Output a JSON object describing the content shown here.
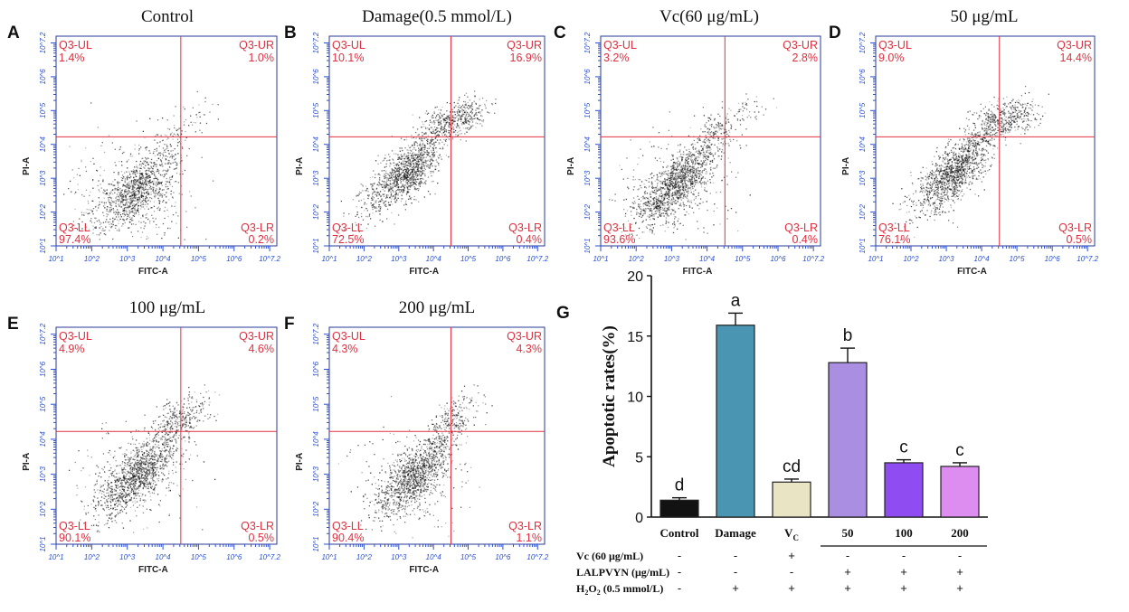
{
  "flow_panels": [
    {
      "letter": "A",
      "title": "Control",
      "quadrants": {
        "ul_label": "Q3-UL",
        "ul": "1.4%",
        "ur_label": "Q3-UR",
        "ur": "1.0%",
        "ll_label": "Q3-LL",
        "ll": "97.4%",
        "lr_label": "Q3-LR",
        "lr": "0.2%"
      }
    },
    {
      "letter": "B",
      "title": "Damage(0.5 mmol/L)",
      "quadrants": {
        "ul_label": "Q3-UL",
        "ul": "10.1%",
        "ur_label": "Q3-UR",
        "ur": "16.9%",
        "ll_label": "Q3-LL",
        "ll": "72.5%",
        "lr_label": "Q3-LR",
        "lr": "0.4%"
      }
    },
    {
      "letter": "C",
      "title": "Vc(60 μg/mL)",
      "quadrants": {
        "ul_label": "Q3-UL",
        "ul": "3.2%",
        "ur_label": "Q3-UR",
        "ur": "2.8%",
        "ll_label": "Q3-LL",
        "ll": "93.6%",
        "lr_label": "Q3-LR",
        "lr": "0.4%"
      }
    },
    {
      "letter": "D",
      "title": "50 μg/mL",
      "quadrants": {
        "ul_label": "Q3-UL",
        "ul": "9.0%",
        "ur_label": "Q3-UR",
        "ur": "14.4%",
        "ll_label": "Q3-LL",
        "ll": "76.1%",
        "lr_label": "Q3-LR",
        "lr": "0.5%"
      }
    },
    {
      "letter": "E",
      "title": "100 μg/mL",
      "quadrants": {
        "ul_label": "Q3-UL",
        "ul": "4.9%",
        "ur_label": "Q3-UR",
        "ur": "4.6%",
        "ll_label": "Q3-LL",
        "ll": "90.1%",
        "lr_label": "Q3-LR",
        "lr": "0.5%"
      }
    },
    {
      "letter": "F",
      "title": "200 μg/mL",
      "quadrants": {
        "ul_label": "Q3-UL",
        "ul": "4.3%",
        "ur_label": "Q3-UR",
        "ur": "4.3%",
        "ll_label": "Q3-LL",
        "ll": "90.4%",
        "lr_label": "Q3-LR",
        "lr": "1.1%"
      }
    }
  ],
  "flow_axes": {
    "xlabel": "FITC-A",
    "ylabel": "PI-A",
    "tick_labels": [
      "10^1",
      "10^2",
      "10^3",
      "10^4",
      "10^5",
      "10^6",
      "10^7.2"
    ]
  },
  "chart_data": [
    {
      "type": "scatter",
      "description": "flow cytometry dot plots A-F, Annexin V-FITC / PI",
      "xlabel": "FITC-A",
      "ylabel": "PI-A",
      "xscale": "log",
      "yscale": "log",
      "xlim": [
        1,
        7.2
      ],
      "ylim": [
        1,
        7.2
      ],
      "gates": {
        "x": 4.5,
        "y": 4.5
      }
    },
    {
      "type": "bar",
      "panel": "G",
      "ylabel": "Apoptotic rates(%)",
      "ylim": [
        0,
        20
      ],
      "yticks": [
        "0",
        "5",
        "10",
        "15",
        "20"
      ],
      "categories": [
        "Control",
        "Damage",
        "V",
        "50",
        "100",
        "200"
      ],
      "category_subscript": {
        "index": 2,
        "sub": "C"
      },
      "values": [
        1.4,
        15.9,
        2.9,
        12.8,
        4.5,
        4.2
      ],
      "errors": [
        0.2,
        1.0,
        0.25,
        1.2,
        0.25,
        0.3
      ],
      "letters": [
        "d",
        "a",
        "cd",
        "b",
        "c",
        "c"
      ],
      "colors": [
        "#121212",
        "#4a96b2",
        "#e9e4c4",
        "#a98ee2",
        "#8f4cf0",
        "#dd8cf0"
      ]
    }
  ],
  "bar_panel": {
    "letter": "G",
    "underline_group_start_index": 3
  },
  "treatment_table": {
    "rows": [
      {
        "label": "Vc (60 μg/mL)",
        "cells": [
          "-",
          "-",
          "+",
          "-",
          "-",
          "-"
        ]
      },
      {
        "label": "LALPVYN (μg/mL)",
        "cells": [
          "-",
          "-",
          "-",
          "+",
          "+",
          "+"
        ]
      },
      {
        "label_prefix": "H",
        "label_sub": "2",
        "label_mid": "O",
        "label_sub2": "2",
        "label_suffix": " (0.5 mmol/L)",
        "cells": [
          "-",
          "+",
          "+",
          "+",
          "+",
          "+"
        ]
      }
    ]
  }
}
